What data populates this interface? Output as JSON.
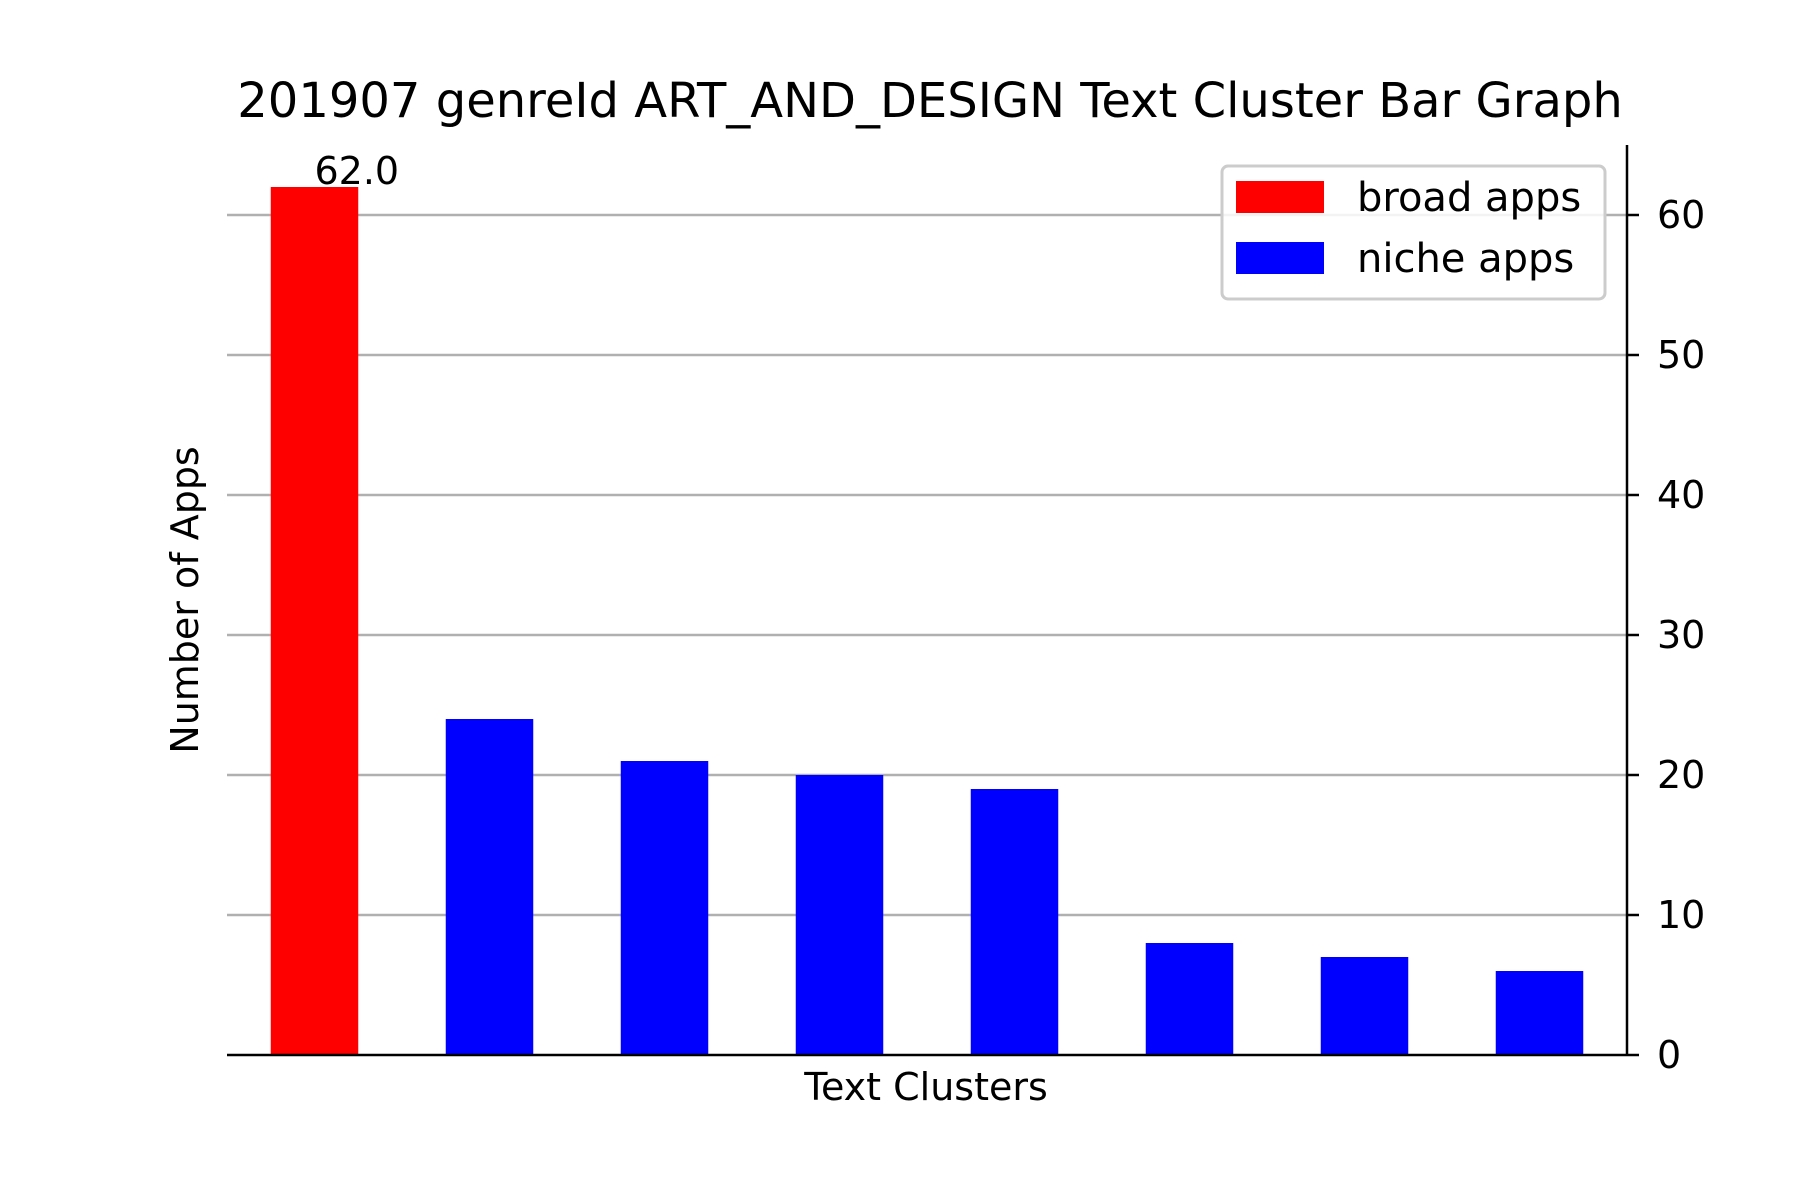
{
  "chart_data": {
    "type": "bar",
    "title": "201907 genreId ART_AND_DESIGN Text Cluster Bar Graph",
    "xlabel": "Text Clusters",
    "ylabel": "Number of Apps",
    "ylim": [
      0,
      65
    ],
    "yticks": [
      0,
      10,
      20,
      30,
      40,
      50,
      60
    ],
    "yaxis_side": "right",
    "grid": "horizontal",
    "legend_position": "top-right",
    "series": [
      {
        "name": "broad apps",
        "color": "#ff0000",
        "values": [
          62,
          null,
          null,
          null,
          null,
          null,
          null,
          null
        ]
      },
      {
        "name": "niche apps",
        "color": "#0000ff",
        "values": [
          null,
          24,
          21,
          20,
          19,
          8,
          7,
          6
        ]
      }
    ],
    "annotations": [
      {
        "bar_index": 0,
        "text": "62.0"
      }
    ]
  }
}
